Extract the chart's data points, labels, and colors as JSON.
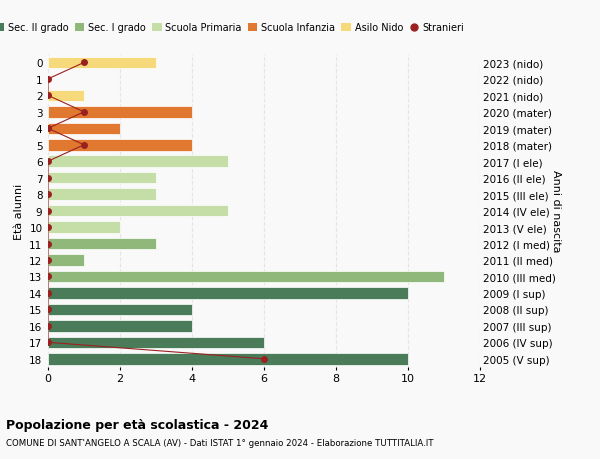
{
  "ages": [
    18,
    17,
    16,
    15,
    14,
    13,
    12,
    11,
    10,
    9,
    8,
    7,
    6,
    5,
    4,
    3,
    2,
    1,
    0
  ],
  "right_labels": [
    "2005 (V sup)",
    "2006 (IV sup)",
    "2007 (III sup)",
    "2008 (II sup)",
    "2009 (I sup)",
    "2010 (III med)",
    "2011 (II med)",
    "2012 (I med)",
    "2013 (V ele)",
    "2014 (IV ele)",
    "2015 (III ele)",
    "2016 (II ele)",
    "2017 (I ele)",
    "2018 (mater)",
    "2019 (mater)",
    "2020 (mater)",
    "2021 (nido)",
    "2022 (nido)",
    "2023 (nido)"
  ],
  "bar_values": [
    10,
    6,
    4,
    4,
    10,
    11,
    1,
    3,
    2,
    5,
    3,
    3,
    5,
    4,
    2,
    4,
    1,
    0,
    3
  ],
  "bar_colors": [
    "#4a7c59",
    "#4a7c59",
    "#4a7c59",
    "#4a7c59",
    "#4a7c59",
    "#8fb87a",
    "#8fb87a",
    "#8fb87a",
    "#c5dea8",
    "#c5dea8",
    "#c5dea8",
    "#c5dea8",
    "#c5dea8",
    "#e07830",
    "#e07830",
    "#e07830",
    "#f5d97a",
    "#f5d97a",
    "#f5d97a"
  ],
  "stranieri_x": [
    6,
    0,
    0,
    0,
    0,
    0,
    0,
    0,
    0,
    0,
    0,
    0,
    0,
    1,
    0,
    1,
    0,
    0,
    1
  ],
  "legend_labels": [
    "Sec. II grado",
    "Sec. I grado",
    "Scuola Primaria",
    "Scuola Infanzia",
    "Asilo Nido",
    "Stranieri"
  ],
  "legend_colors": [
    "#4a7c59",
    "#8fb87a",
    "#c5dea8",
    "#e07830",
    "#f5d97a",
    "#cc2222"
  ],
  "ylabel": "Età alunni",
  "right_ylabel": "Anni di nascita",
  "title": "Popolazione per età scolastica - 2024",
  "subtitle": "COMUNE DI SANT'ANGELO A SCALA (AV) - Dati ISTAT 1° gennaio 2024 - Elaborazione TUTTITALIA.IT",
  "xlim": [
    0,
    12
  ],
  "grid_color": "#dddddd",
  "bg_color": "#f9f9f9"
}
